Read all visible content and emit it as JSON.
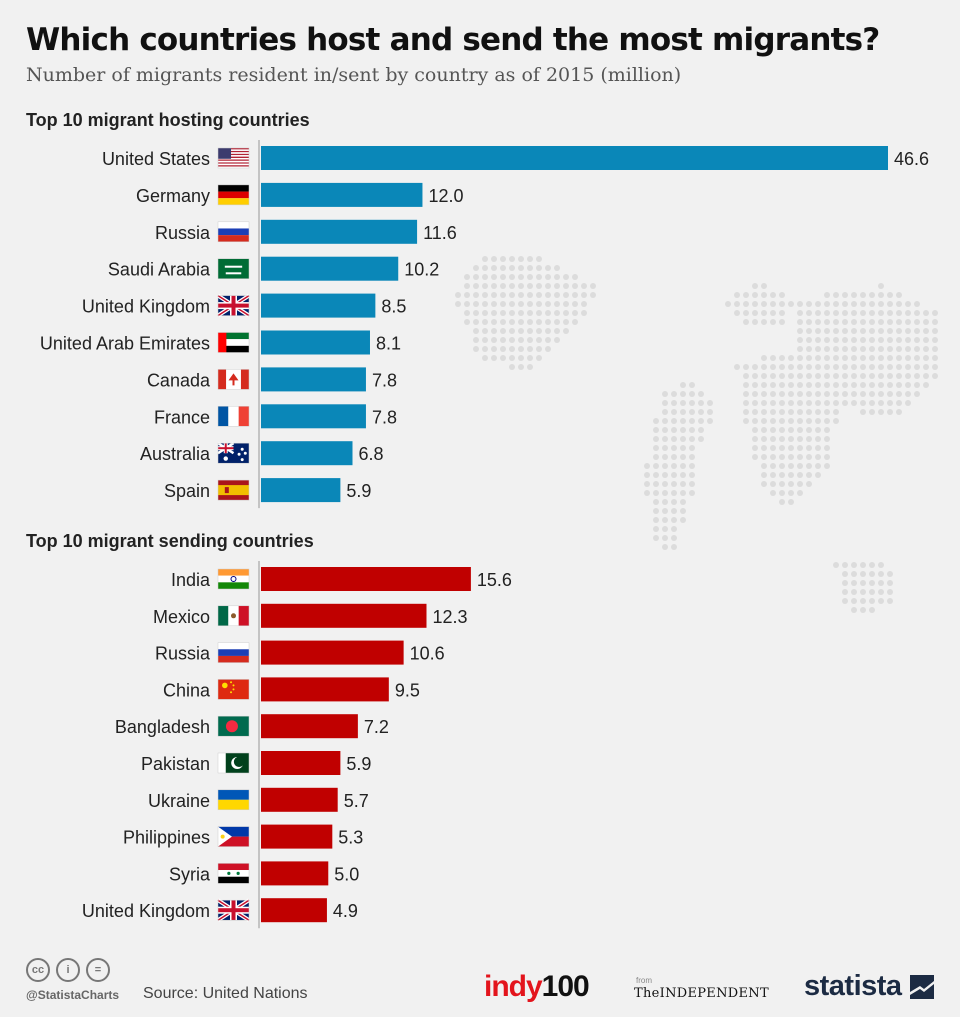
{
  "title": "Which countries host and send the most migrants?",
  "subtitle": "Number of migrants resident in/sent by country as of 2015 (million)",
  "footer": {
    "handle": "@StatistaCharts",
    "source": "Source: United Nations",
    "cc_icons": [
      "cc",
      "i",
      "="
    ],
    "logo_indy_a": "indy",
    "logo_indy_b": "100",
    "logo_from": "from",
    "logo_independent": "TheINDEPENDENT",
    "logo_statista": "statista"
  },
  "colors": {
    "hosting": "#0a87b8",
    "sending": "#c00000"
  },
  "chart_data": [
    {
      "type": "bar",
      "orientation": "horizontal",
      "title": "Top 10 migrant hosting countries",
      "unit": "million",
      "xlim": [
        0,
        46.6
      ],
      "categories": [
        "United States",
        "Germany",
        "Russia",
        "Saudi Arabia",
        "United Kingdom",
        "United Arab Emirates",
        "Canada",
        "France",
        "Australia",
        "Spain"
      ],
      "flags": [
        "us",
        "de",
        "ru",
        "sa",
        "gb",
        "ae",
        "ca",
        "fr",
        "au",
        "es"
      ],
      "values": [
        46.6,
        12.0,
        11.6,
        10.2,
        8.5,
        8.1,
        7.8,
        7.8,
        6.8,
        5.9
      ],
      "labels": [
        "46.6",
        "12.0",
        "11.6",
        "10.2",
        "8.5",
        "8.1",
        "7.8",
        "7.8",
        "6.8",
        "5.9"
      ]
    },
    {
      "type": "bar",
      "orientation": "horizontal",
      "title": "Top 10 migrant sending countries",
      "unit": "million",
      "xlim": [
        0,
        46.6
      ],
      "categories": [
        "India",
        "Mexico",
        "Russia",
        "China",
        "Bangladesh",
        "Pakistan",
        "Ukraine",
        "Philippines",
        "Syria",
        "United Kingdom"
      ],
      "flags": [
        "in",
        "mx",
        "ru",
        "cn",
        "bd",
        "pk",
        "ua",
        "ph",
        "sy",
        "gb"
      ],
      "values": [
        15.6,
        12.3,
        10.6,
        9.5,
        7.2,
        5.9,
        5.7,
        5.3,
        5.0,
        4.9
      ],
      "labels": [
        "15.6",
        "12.3",
        "10.6",
        "9.5",
        "7.2",
        "5.9",
        "5.7",
        "5.3",
        "5.0",
        "4.9"
      ]
    }
  ]
}
